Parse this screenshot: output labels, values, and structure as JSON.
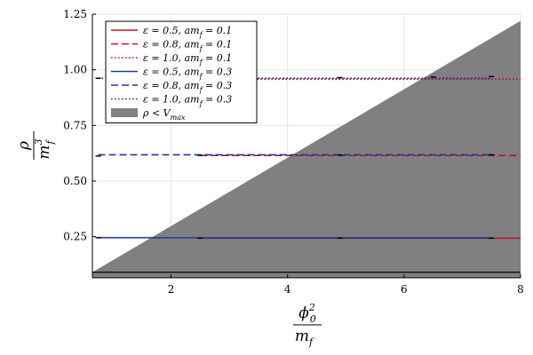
{
  "chart_data": {
    "type": "line",
    "xlabel": {
      "num": "ϕ",
      "num_sup": "2",
      "num_sub": "0",
      "den": "m",
      "den_sub": "f"
    },
    "ylabel": {
      "num": "ρ",
      "den": "m",
      "den_sup": "3",
      "den_sub": "f"
    },
    "xlim": [
      0.65,
      8.0
    ],
    "ylim": [
      0.065,
      1.25
    ],
    "xticks": [
      2,
      4,
      6,
      8
    ],
    "xtick_labels": [
      "2",
      "4",
      "6",
      "8"
    ],
    "yticks": [
      0.25,
      0.5,
      0.75,
      1.0,
      1.25
    ],
    "ytick_labels": [
      "0.25",
      "0.50",
      "0.75",
      "1.00",
      "1.25"
    ],
    "grid": true,
    "legend_position": "top-left",
    "series": [
      {
        "name": "ε = 0.5, am_f = 0.1",
        "label": {
          "eps": "0.5",
          "am": "0.1"
        },
        "color": "#b2182b",
        "style": "solid",
        "x": [
          2.5,
          8.0
        ],
        "y": [
          0.243,
          0.243
        ]
      },
      {
        "name": "ε = 0.8, am_f = 0.1",
        "label": {
          "eps": "0.8",
          "am": "0.1"
        },
        "color": "#b2182b",
        "style": "dashed",
        "x": [
          2.5,
          8.0
        ],
        "y": [
          0.615,
          0.615
        ]
      },
      {
        "name": "ε = 1.0, am_f = 0.1",
        "label": {
          "eps": "1.0",
          "am": "0.1"
        },
        "color": "#b2182b",
        "style": "dotted",
        "x": [
          2.5,
          8.0
        ],
        "y": [
          0.958,
          0.958
        ]
      },
      {
        "name": "ε = 0.5, am_f = 0.3",
        "label": {
          "eps": "0.5",
          "am": "0.3"
        },
        "color": "#1f3a93",
        "style": "solid",
        "x": [
          0.75,
          7.5
        ],
        "y": [
          0.245,
          0.245
        ]
      },
      {
        "name": "ε = 0.8, am_f = 0.3",
        "label": {
          "eps": "0.8",
          "am": "0.3"
        },
        "color": "#1f3a93",
        "style": "dashed",
        "x": [
          0.75,
          7.5
        ],
        "y": [
          0.618,
          0.618
        ]
      },
      {
        "name": "ε = 1.0, am_f = 0.3",
        "label": {
          "eps": "1.0",
          "am": "0.3"
        },
        "color": "#1f3a93",
        "style": "dotted",
        "x": [
          0.75,
          7.5
        ],
        "y": [
          0.962,
          0.962
        ]
      }
    ],
    "errorbars": [
      {
        "x": 0.75,
        "y": 0.245
      },
      {
        "x": 2.5,
        "y": 0.243
      },
      {
        "x": 4.9,
        "y": 0.243
      },
      {
        "x": 7.5,
        "y": 0.243
      },
      {
        "x": 0.75,
        "y": 0.612
      },
      {
        "x": 2.5,
        "y": 0.615
      },
      {
        "x": 4.9,
        "y": 0.617
      },
      {
        "x": 7.5,
        "y": 0.618
      },
      {
        "x": 0.75,
        "y": 0.962
      },
      {
        "x": 4.9,
        "y": 0.965
      },
      {
        "x": 6.5,
        "y": 0.968
      },
      {
        "x": 7.5,
        "y": 0.97
      }
    ],
    "area": {
      "name": "ρ < V_max",
      "label": {
        "main": "ρ < V",
        "sub": "max"
      },
      "color": "#808080",
      "polygon": [
        [
          0.65,
          0.09
        ],
        [
          8.0,
          1.22
        ],
        [
          8.0,
          0.065
        ],
        [
          0.65,
          0.065
        ]
      ]
    },
    "hline": {
      "y": 0.09,
      "color": "#000000"
    }
  }
}
